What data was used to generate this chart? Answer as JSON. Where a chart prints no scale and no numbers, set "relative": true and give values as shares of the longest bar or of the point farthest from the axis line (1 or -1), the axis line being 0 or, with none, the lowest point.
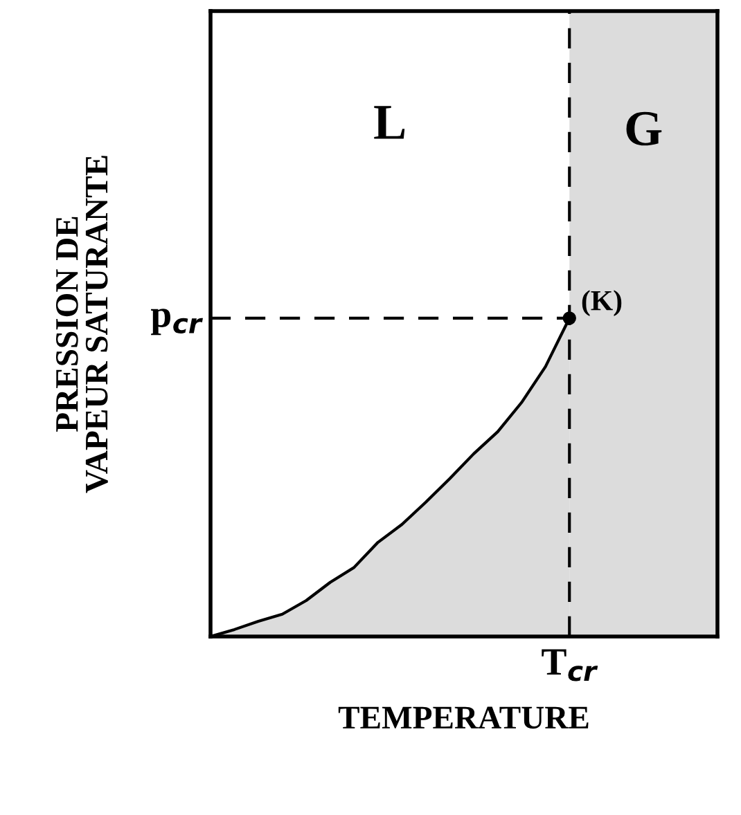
{
  "chart_data": {
    "type": "area",
    "relative": true,
    "xlabel": "TEMPERATURE",
    "ylabel": "PRESSION DE\nVAPEUR SATURANTE",
    "categories": [
      null,
      null,
      null,
      null,
      null,
      null,
      null,
      null,
      null,
      null,
      null,
      null,
      null,
      null,
      null,
      null
    ],
    "values": [
      0,
      0.022,
      0.048,
      0.07,
      0.113,
      0.17,
      0.217,
      0.296,
      0.352,
      0.422,
      0.496,
      0.574,
      0.643,
      0.735,
      0.848,
      1
    ],
    "color": "#dcdcdc",
    "annotations": [
      "L",
      "G",
      "(K)",
      "T$_{cr}$",
      "p$_{cr}$"
    ]
  }
}
